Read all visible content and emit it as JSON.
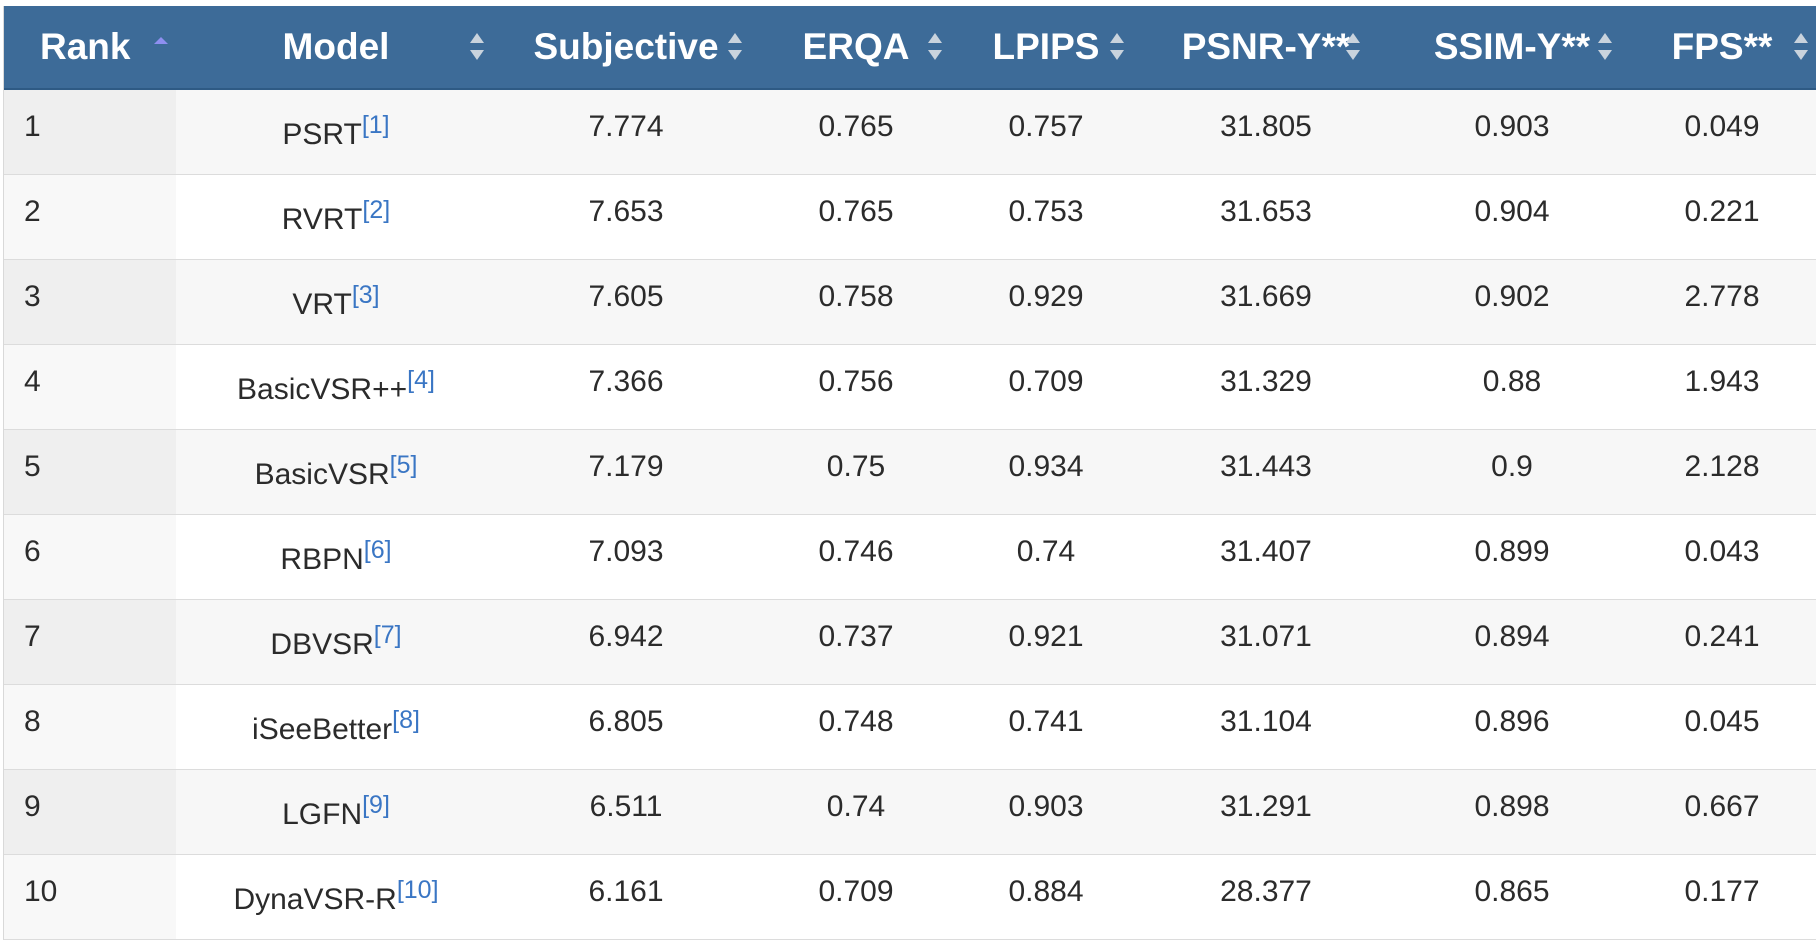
{
  "columns": [
    {
      "key": "rank",
      "label": "Rank",
      "sort": "asc"
    },
    {
      "key": "model",
      "label": "Model",
      "sort": "none"
    },
    {
      "key": "subjective",
      "label": "Subjective",
      "sort": "none"
    },
    {
      "key": "erqa",
      "label": "ERQA",
      "sort": "none"
    },
    {
      "key": "lpips",
      "label": "LPIPS",
      "sort": "none"
    },
    {
      "key": "psnr",
      "label": "PSNR-Y**",
      "sort": "none"
    },
    {
      "key": "ssim",
      "label": "SSIM-Y**",
      "sort": "none"
    },
    {
      "key": "fps",
      "label": "FPS**",
      "sort": "none"
    }
  ],
  "rows": [
    {
      "rank": "1",
      "model": "PSRT",
      "ref": "[1]",
      "subjective": "7.774",
      "erqa": "0.765",
      "lpips": "0.757",
      "psnr": "31.805",
      "ssim": "0.903",
      "fps": "0.049"
    },
    {
      "rank": "2",
      "model": "RVRT",
      "ref": "[2]",
      "subjective": "7.653",
      "erqa": "0.765",
      "lpips": "0.753",
      "psnr": "31.653",
      "ssim": "0.904",
      "fps": "0.221"
    },
    {
      "rank": "3",
      "model": "VRT",
      "ref": "[3]",
      "subjective": "7.605",
      "erqa": "0.758",
      "lpips": "0.929",
      "psnr": "31.669",
      "ssim": "0.902",
      "fps": "2.778"
    },
    {
      "rank": "4",
      "model": "BasicVSR++",
      "ref": "[4]",
      "subjective": "7.366",
      "erqa": "0.756",
      "lpips": "0.709",
      "psnr": "31.329",
      "ssim": "0.88",
      "fps": "1.943"
    },
    {
      "rank": "5",
      "model": "BasicVSR",
      "ref": "[5]",
      "subjective": "7.179",
      "erqa": "0.75",
      "lpips": "0.934",
      "psnr": "31.443",
      "ssim": "0.9",
      "fps": "2.128"
    },
    {
      "rank": "6",
      "model": "RBPN",
      "ref": "[6]",
      "subjective": "7.093",
      "erqa": "0.746",
      "lpips": "0.74",
      "psnr": "31.407",
      "ssim": "0.899",
      "fps": "0.043"
    },
    {
      "rank": "7",
      "model": "DBVSR",
      "ref": "[7]",
      "subjective": "6.942",
      "erqa": "0.737",
      "lpips": "0.921",
      "psnr": "31.071",
      "ssim": "0.894",
      "fps": "0.241"
    },
    {
      "rank": "8",
      "model": "iSeeBetter",
      "ref": "[8]",
      "subjective": "6.805",
      "erqa": "0.748",
      "lpips": "0.741",
      "psnr": "31.104",
      "ssim": "0.896",
      "fps": "0.045"
    },
    {
      "rank": "9",
      "model": "LGFN",
      "ref": "[9]",
      "subjective": "6.511",
      "erqa": "0.74",
      "lpips": "0.903",
      "psnr": "31.291",
      "ssim": "0.898",
      "fps": "0.667"
    },
    {
      "rank": "10",
      "model": "DynaVSR-R",
      "ref": "[10]",
      "subjective": "6.161",
      "erqa": "0.709",
      "lpips": "0.884",
      "psnr": "28.377",
      "ssim": "0.865",
      "fps": "0.177"
    }
  ],
  "colors": {
    "header_bg": "#3d6b98",
    "header_text": "#ffffff",
    "sort_active": "#8e8ff0",
    "sort_inactive": "#c9d3dd",
    "ref_link": "#3a76c4"
  }
}
